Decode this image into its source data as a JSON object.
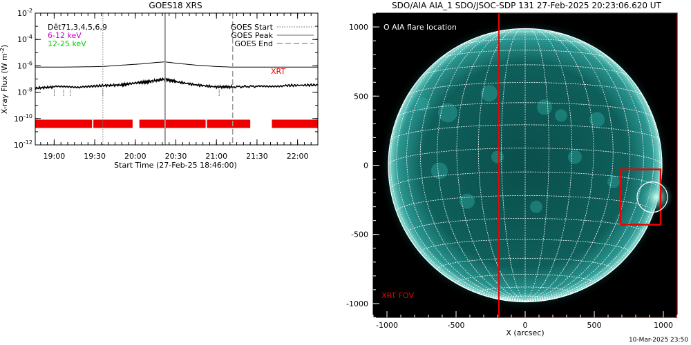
{
  "chart_data": [
    {
      "type": "line",
      "title": "GOES18 XRS",
      "xlabel": "Start Time (27-Feb-25 18:46:00)",
      "ylabel": "X-ray Flux (W m⁻²)",
      "ylabel_parts": {
        "main": "X-ray Flux (W m",
        "sup": "-2",
        "close": ")"
      },
      "yscale": "log",
      "ylim_exp": [
        -12,
        -2
      ],
      "ytick_exps": [
        -12,
        -10,
        -8,
        -6,
        -4,
        -2
      ],
      "xlim_min": [
        1126,
        1335
      ],
      "xtick_min": [
        1140,
        1170,
        1200,
        1230,
        1260,
        1290,
        1320
      ],
      "xtick_labels": [
        "19:00",
        "19:30",
        "20:00",
        "20:30",
        "21:00",
        "21:30",
        "22:00"
      ],
      "legend_left": [
        {
          "text": "Dêt71,3,4,5,6,9",
          "color": "#000000"
        },
        {
          "text": "6-12  keV",
          "color": "#cc00cc"
        },
        {
          "text": "12-25 keV",
          "color": "#00cc00"
        }
      ],
      "legend_right": [
        {
          "text": "GOES Start",
          "style": "dotted"
        },
        {
          "text": "GOES Peak",
          "style": "solid"
        },
        {
          "text": "GOES End",
          "style": "dashed"
        }
      ],
      "xrt_label": "XRT",
      "goes_start_min": 1176,
      "goes_peak_min": 1222,
      "goes_end_min": 1272,
      "series": [
        {
          "name": "",
          "color": "#000000",
          "x": [
            1126,
            1140,
            1160,
            1176,
            1190,
            1205,
            1215,
            1222,
            1230,
            1245,
            1260,
            1272,
            1290,
            1310,
            1335
          ],
          "log_y": [
            -6.1,
            -6.1,
            -6.08,
            -6.05,
            -5.95,
            -5.85,
            -5.75,
            -5.7,
            -5.8,
            -5.95,
            -6.05,
            -6.1,
            -6.1,
            -6.1,
            -6.1
          ]
        },
        {
          "name": "",
          "color": "#000000",
          "x": [
            1126,
            1140,
            1160,
            1176,
            1190,
            1200,
            1210,
            1222,
            1230,
            1245,
            1260,
            1272,
            1290,
            1310,
            1335
          ],
          "log_y": [
            -7.7,
            -7.6,
            -7.6,
            -7.5,
            -7.45,
            -7.3,
            -7.2,
            -7.0,
            -7.2,
            -7.45,
            -7.6,
            -7.6,
            -7.55,
            -7.5,
            -7.45
          ]
        }
      ],
      "xrt_bars": [
        [
          1126,
          1168
        ],
        [
          1169,
          1198
        ],
        [
          1203,
          1252
        ],
        [
          1253,
          1285
        ],
        [
          1301,
          1335
        ]
      ],
      "xrt_bar_level_exp": -10.4,
      "colors": {
        "xrt": "#ee0000",
        "flux": "#000000"
      }
    },
    {
      "type": "image",
      "title": "SDO/AIA AIA_1 SDO/JSOC-SDP 131 27-Feb-2025 20:23:06.620 UT",
      "xlabel": "X (arcsec)",
      "xlim": [
        -1100,
        1100
      ],
      "ylim": [
        -1100,
        1100
      ],
      "xticks": [
        -1000,
        -500,
        0,
        500,
        1000
      ],
      "yticks": [
        -1000,
        -500,
        0,
        500,
        1000
      ],
      "xtick_labels": [
        "-1000",
        "-500",
        "0",
        "500",
        "1000"
      ],
      "ytick_labels": [
        "-1000",
        "-500",
        "0",
        "500",
        "1000"
      ],
      "legend_text": "O AIA flare location",
      "xrt_fov_label": "XRT FOV",
      "solar_radius_arcsec": 990,
      "xrt_fov_box": [
        -190,
        1100,
        1100,
        -1100
      ],
      "zoom_box": [
        690,
        980,
        -430,
        -30
      ],
      "flare_circle": {
        "x": 920,
        "y": -230,
        "r": 110
      },
      "colors": {
        "disk": "#0f6a66",
        "box": "#ee0000",
        "grid": "#ffffff"
      }
    }
  ],
  "footer_timestamp": "10-Mar-2025 23:50"
}
